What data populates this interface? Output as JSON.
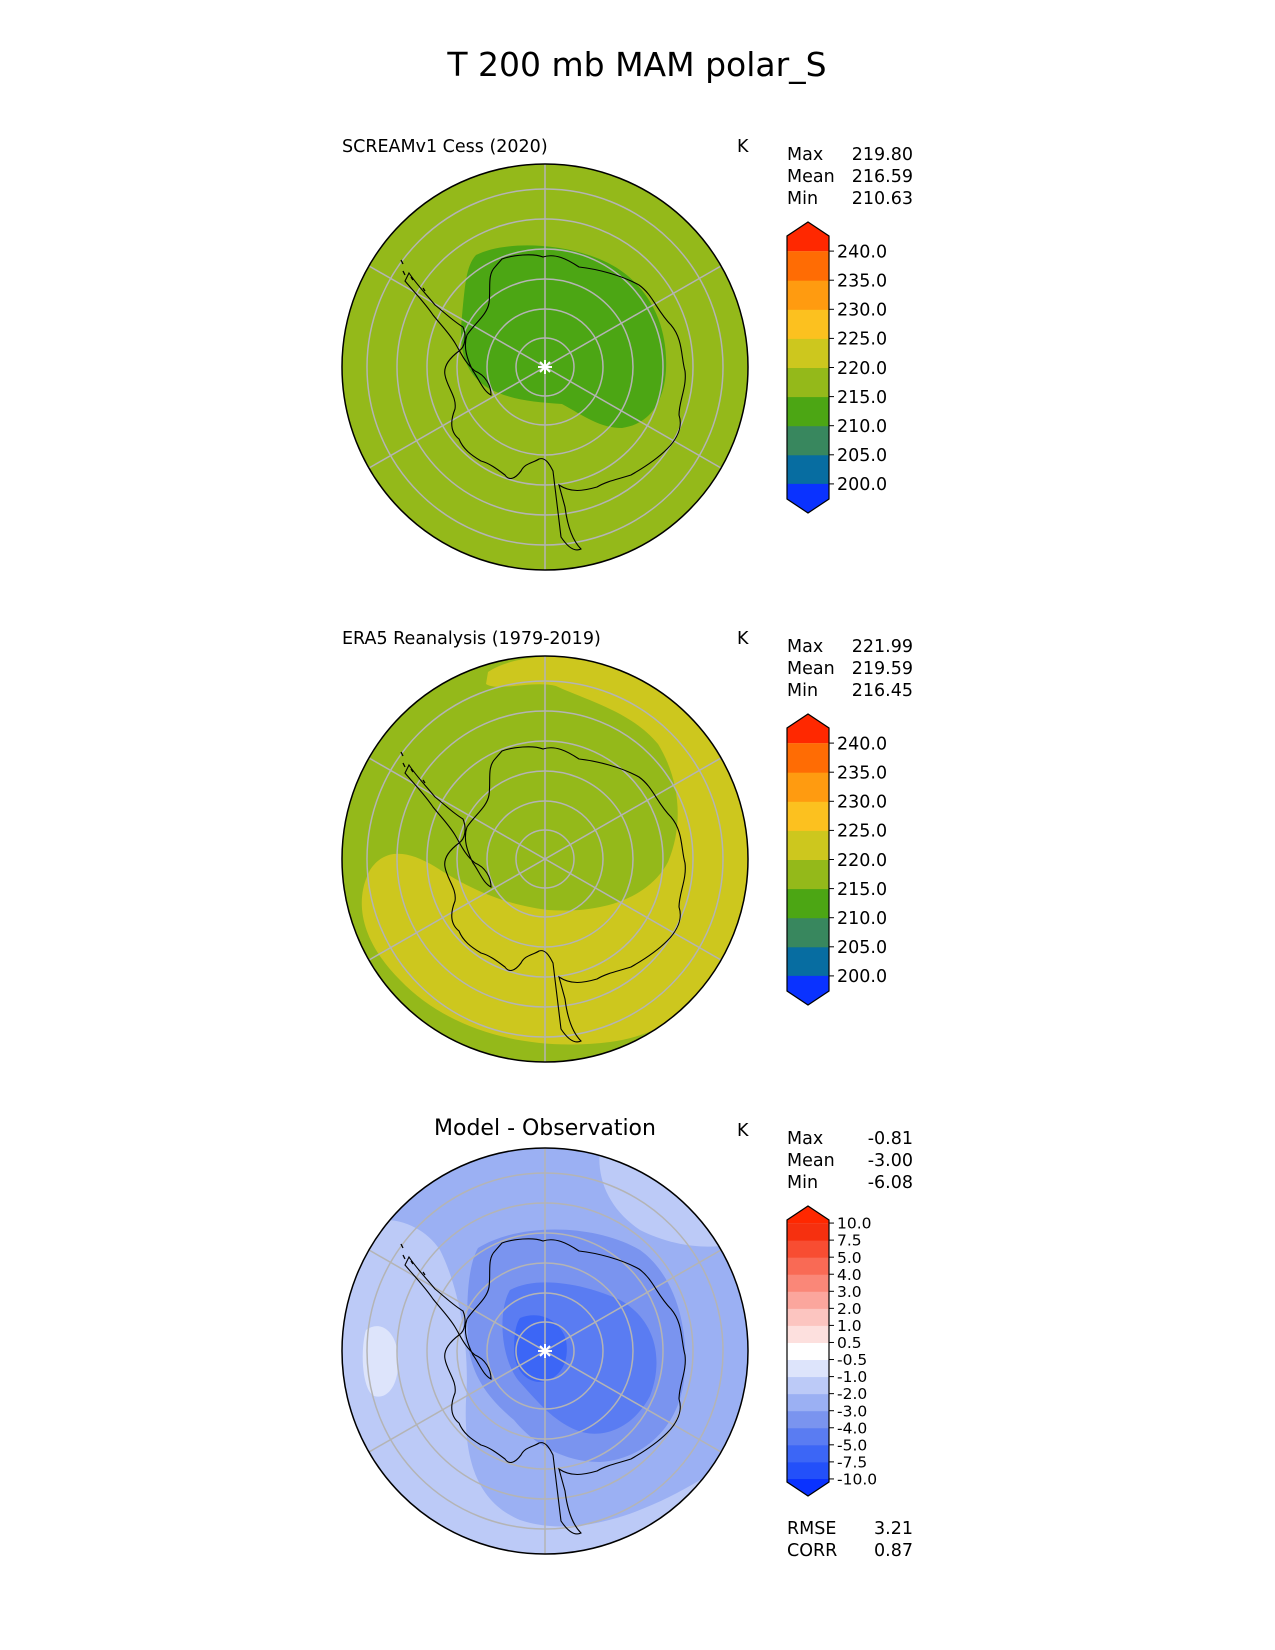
{
  "figure_title": "T 200 mb MAM polar_S",
  "chart_data": [
    {
      "type": "heatmap",
      "projection": "south-polar-stereographic",
      "title": "SCREAMv1 Cess (2020)",
      "units": "K",
      "stats": [
        {
          "label": "Max",
          "value": "219.80"
        },
        {
          "label": "Mean",
          "value": "216.59"
        },
        {
          "label": "Min",
          "value": "210.63"
        }
      ],
      "colorbar": {
        "levels": [
          "200.0",
          "205.0",
          "210.0",
          "215.0",
          "220.0",
          "225.0",
          "230.0",
          "235.0",
          "240.0"
        ],
        "colors": [
          "#0a32ff",
          "#076da1",
          "#38875e",
          "#4ca614",
          "#94b91a",
          "#cdc71e",
          "#fcc11f",
          "#ff9b10",
          "#ff6c04",
          "#ff2800"
        ],
        "extend": "both"
      },
      "field_summary": {
        "background_band": "215.0-220.0",
        "polar_core_band": "210.0-215.0"
      }
    },
    {
      "type": "heatmap",
      "projection": "south-polar-stereographic",
      "title": "ERA5 Reanalysis (1979-2019)",
      "units": "K",
      "stats": [
        {
          "label": "Max",
          "value": "221.99"
        },
        {
          "label": "Mean",
          "value": "219.59"
        },
        {
          "label": "Min",
          "value": "216.45"
        }
      ],
      "colorbar": {
        "levels": [
          "200.0",
          "205.0",
          "210.0",
          "215.0",
          "220.0",
          "225.0",
          "230.0",
          "235.0",
          "240.0"
        ],
        "colors": [
          "#0a32ff",
          "#076da1",
          "#38875e",
          "#4ca614",
          "#94b91a",
          "#cdc71e",
          "#fcc11f",
          "#ff9b10",
          "#ff6c04",
          "#ff2800"
        ],
        "extend": "both"
      },
      "field_summary": {
        "background_band": "215.0-220.0",
        "ring_band": "220.0-225.0"
      }
    },
    {
      "type": "heatmap",
      "projection": "south-polar-stereographic",
      "title": "Model - Observation",
      "units": "K",
      "stats": [
        {
          "label": "Max",
          "value": "-0.81"
        },
        {
          "label": "Mean",
          "value": "-3.00"
        },
        {
          "label": "Min",
          "value": "-6.08"
        }
      ],
      "metrics": [
        {
          "label": "RMSE",
          "value": "3.21"
        },
        {
          "label": "CORR",
          "value": "0.87"
        }
      ],
      "colorbar": {
        "levels": [
          "-10.0",
          "-7.5",
          "-5.0",
          "-4.0",
          "-3.0",
          "-2.0",
          "-1.0",
          "-0.5",
          "0.5",
          "1.0",
          "2.0",
          "3.0",
          "4.0",
          "5.0",
          "7.5",
          "10.0"
        ],
        "colors": [
          "#0a32ff",
          "#2350fa",
          "#3c66f6",
          "#5a7cf2",
          "#7a94ef",
          "#9bb0f3",
          "#bccaf7",
          "#dde4fb",
          "#ffffff",
          "#fde0de",
          "#fcc5c0",
          "#fba69d",
          "#fa8778",
          "#f96a55",
          "#f84d32",
          "#f6300f",
          "#ff2800"
        ],
        "extend": "both"
      },
      "field_summary": {
        "background_band": "-3.0 to -2.0",
        "polar_core_band": "-7.5 to -5.0"
      }
    }
  ]
}
